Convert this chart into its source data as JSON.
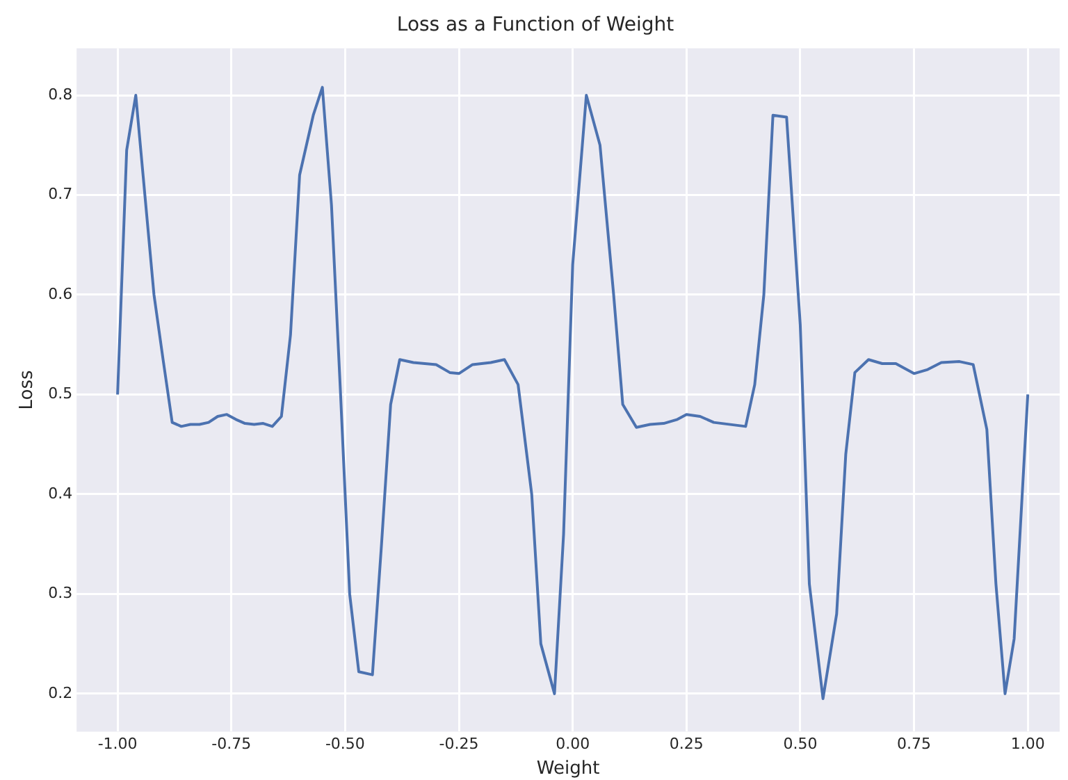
{
  "chart_data": {
    "type": "line",
    "title": "Loss as a Function of Weight",
    "xlabel": "Weight",
    "ylabel": "Loss",
    "x": [
      -1.0,
      -0.98,
      -0.96,
      -0.94,
      -0.92,
      -0.9,
      -0.88,
      -0.86,
      -0.84,
      -0.82,
      -0.8,
      -0.78,
      -0.76,
      -0.74,
      -0.72,
      -0.7,
      -0.68,
      -0.66,
      -0.64,
      -0.62,
      -0.6,
      -0.57,
      -0.55,
      -0.53,
      -0.51,
      -0.49,
      -0.47,
      -0.44,
      -0.42,
      -0.4,
      -0.38,
      -0.35,
      -0.3,
      -0.27,
      -0.25,
      -0.22,
      -0.18,
      -0.15,
      -0.12,
      -0.09,
      -0.07,
      -0.04,
      -0.02,
      0.0,
      0.03,
      0.06,
      0.09,
      0.11,
      0.14,
      0.17,
      0.2,
      0.23,
      0.25,
      0.28,
      0.31,
      0.38,
      0.4,
      0.42,
      0.44,
      0.47,
      0.5,
      0.52,
      0.55,
      0.58,
      0.6,
      0.62,
      0.65,
      0.68,
      0.71,
      0.75,
      0.78,
      0.81,
      0.85,
      0.88,
      0.91,
      0.93,
      0.95,
      0.97,
      1.0
    ],
    "series": [
      {
        "color": "#4c72b0",
        "values": [
          0.5,
          0.745,
          0.8,
          0.7,
          0.6,
          0.535,
          0.472,
          0.468,
          0.47,
          0.47,
          0.472,
          0.478,
          0.48,
          0.475,
          0.471,
          0.47,
          0.471,
          0.468,
          0.478,
          0.56,
          0.72,
          0.78,
          0.808,
          0.69,
          0.5,
          0.3,
          0.222,
          0.219,
          0.35,
          0.49,
          0.535,
          0.532,
          0.53,
          0.522,
          0.521,
          0.53,
          0.532,
          0.535,
          0.51,
          0.4,
          0.25,
          0.2,
          0.36,
          0.63,
          0.8,
          0.75,
          0.6,
          0.49,
          0.467,
          0.47,
          0.471,
          0.475,
          0.48,
          0.478,
          0.472,
          0.468,
          0.51,
          0.6,
          0.78,
          0.778,
          0.57,
          0.31,
          0.195,
          0.28,
          0.44,
          0.522,
          0.535,
          0.531,
          0.531,
          0.521,
          0.525,
          0.532,
          0.533,
          0.53,
          0.465,
          0.31,
          0.2,
          0.255,
          0.5
        ]
      }
    ],
    "xlim": [
      -1.09,
      1.07
    ],
    "ylim": [
      0.162,
      0.847
    ],
    "xticks": [
      {
        "value": -1,
        "label": "-1.00"
      },
      {
        "value": -0.75,
        "label": "-0.75"
      },
      {
        "value": -0.5,
        "label": "-0.50"
      },
      {
        "value": -0.25,
        "label": "-0.25"
      },
      {
        "value": 0,
        "label": "0.00"
      },
      {
        "value": 0.25,
        "label": "0.25"
      },
      {
        "value": 0.5,
        "label": "0.50"
      },
      {
        "value": 0.75,
        "label": "0.75"
      },
      {
        "value": 1,
        "label": "1.00"
      }
    ],
    "yticks": [
      0.2,
      0.3,
      0.4,
      0.5,
      0.6,
      0.7,
      0.8
    ],
    "grid": true,
    "legend": false,
    "marker": "none",
    "line_style": "solid"
  }
}
